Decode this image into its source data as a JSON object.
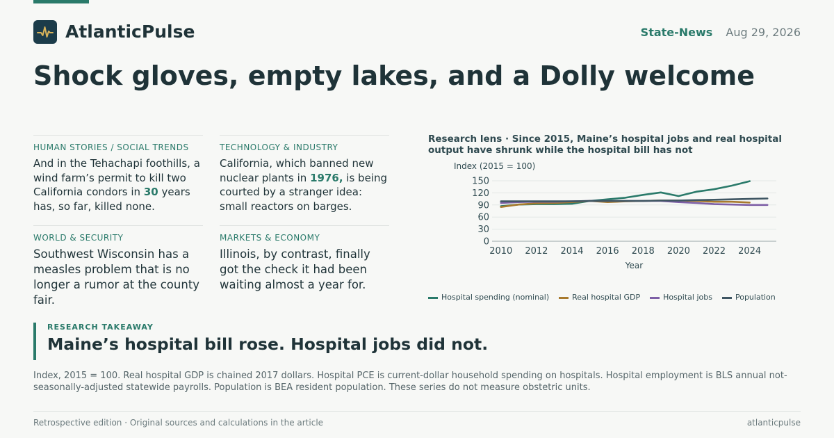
{
  "brand": {
    "name": "AtlanticPulse",
    "section": "State-News",
    "date": "Aug 29, 2026"
  },
  "headline": "Shock gloves, empty lakes, and a Dolly welcome",
  "stories": [
    {
      "kicker": "Human Stories / Social Trends",
      "pre": "And in the Tehachapi foothills, a wind farm’s permit to kill two California condors in ",
      "highlight": "30",
      "post": " years has, so far, killed none."
    },
    {
      "kicker": "Technology & Industry",
      "pre": "California, which banned new nuclear plants in ",
      "highlight": "1976,",
      "post": " is being courted by a stranger idea: small reactors on barges."
    },
    {
      "kicker": "World & Security",
      "text": "Southwest Wisconsin has a measles problem that is no longer a rumor at the county fair."
    },
    {
      "kicker": "Markets & Economy",
      "text": "Illinois, by contrast, finally got the check it had been waiting almost a year for."
    }
  ],
  "chart_title": "Research lens · Since 2015, Maine’s hospital jobs and real hospital output have shrunk while the hospital bill has not",
  "chart_data": {
    "type": "line",
    "ylabel": "Index (2015 = 100)",
    "xlabel": "Year",
    "xlim": [
      2009.5,
      2025.5
    ],
    "ylim": [
      0,
      150
    ],
    "yticks": [
      0,
      30,
      60,
      90,
      120,
      150
    ],
    "xticks": [
      2010,
      2012,
      2014,
      2016,
      2018,
      2020,
      2022,
      2024
    ],
    "grid": true,
    "legend_position": "bottom",
    "series": [
      {
        "name": "Hospital spending (nominal)",
        "color": "#2a7a6a",
        "x": [
          2010,
          2011,
          2012,
          2013,
          2014,
          2015,
          2016,
          2017,
          2018,
          2019,
          2020,
          2021,
          2022,
          2023,
          2024
        ],
        "y": [
          87,
          91,
          92,
          92,
          93,
          100,
          104,
          108,
          115,
          121,
          112,
          123,
          129,
          138,
          149
        ]
      },
      {
        "name": "Real hospital GDP",
        "color": "#a87a2e",
        "x": [
          2010,
          2011,
          2012,
          2013,
          2014,
          2015,
          2016,
          2017,
          2018,
          2019,
          2020,
          2021,
          2022,
          2023,
          2024
        ],
        "y": [
          85,
          91,
          94,
          95,
          97,
          100,
          97,
          99,
          100,
          101,
          101,
          100,
          98,
          98,
          96
        ]
      },
      {
        "name": "Hospital jobs",
        "color": "#7d5fa6",
        "x": [
          2010,
          2011,
          2012,
          2013,
          2014,
          2015,
          2016,
          2017,
          2018,
          2019,
          2020,
          2021,
          2022,
          2023,
          2024,
          2025
        ],
        "y": [
          95,
          97,
          98,
          98,
          99,
          100,
          100,
          100,
          100,
          100,
          97,
          95,
          92,
          91,
          90,
          90
        ]
      },
      {
        "name": "Population",
        "color": "#3f5663",
        "x": [
          2010,
          2011,
          2012,
          2013,
          2014,
          2015,
          2016,
          2017,
          2018,
          2019,
          2020,
          2021,
          2022,
          2023,
          2024,
          2025
        ],
        "y": [
          99,
          99,
          99,
          99,
          99,
          100,
          100,
          100,
          100,
          101,
          101,
          102,
          103,
          104,
          105,
          106
        ]
      }
    ]
  },
  "takeaway": {
    "label": "RESEARCH TAKEAWAY",
    "title": "Maine’s hospital bill rose. Hospital jobs did not."
  },
  "note": "Index, 2015 = 100. Real hospital GDP is chained 2017 dollars. Hospital PCE is current-dollar household spending on hospitals. Hospital employment is BLS annual not-seasonally-adjusted statewide payrolls. Population is BEA resident population. These series do not measure obstetric units.",
  "footer": {
    "left": "Retrospective edition · Original sources and calculations in the article",
    "right": "atlanticpulse"
  }
}
